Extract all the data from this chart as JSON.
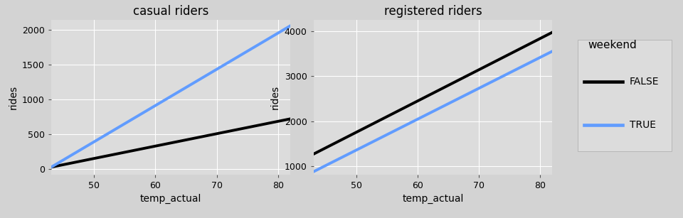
{
  "casual": {
    "title": "casual riders",
    "xlabel": "temp_actual",
    "ylabel": "rides",
    "xlim": [
      43,
      82
    ],
    "ylim": [
      -80,
      2150
    ],
    "yticks": [
      0,
      500,
      1000,
      1500,
      2000
    ],
    "xticks": [
      50,
      60,
      70,
      80
    ],
    "false_line": {
      "x": [
        43,
        82
      ],
      "y": [
        25,
        720
      ]
    },
    "true_line": {
      "x": [
        43,
        82
      ],
      "y": [
        25,
        2060
      ]
    }
  },
  "registered": {
    "title": "registered riders",
    "xlabel": "temp_actual",
    "ylabel": "rides",
    "xlim": [
      43,
      82
    ],
    "ylim": [
      820,
      4250
    ],
    "yticks": [
      1000,
      2000,
      3000,
      4000
    ],
    "xticks": [
      50,
      60,
      70,
      80
    ],
    "false_line": {
      "x": [
        43,
        82
      ],
      "y": [
        1270,
        3970
      ]
    },
    "true_line": {
      "x": [
        43,
        82
      ],
      "y": [
        880,
        3550
      ]
    }
  },
  "legend": {
    "title": "weekend",
    "false_label": "FALSE",
    "true_label": "TRUE",
    "false_color": "#000000",
    "true_color": "#619CFF",
    "box_facecolor": "#DCDCDC"
  },
  "outer_bg": "#D3D3D3",
  "panel_bg": "#DCDCDC",
  "grid_color": "#FFFFFF",
  "line_width": 2.8,
  "title_fontsize": 12,
  "label_fontsize": 10,
  "tick_fontsize": 9,
  "legend_fontsize": 10,
  "legend_title_fontsize": 11
}
